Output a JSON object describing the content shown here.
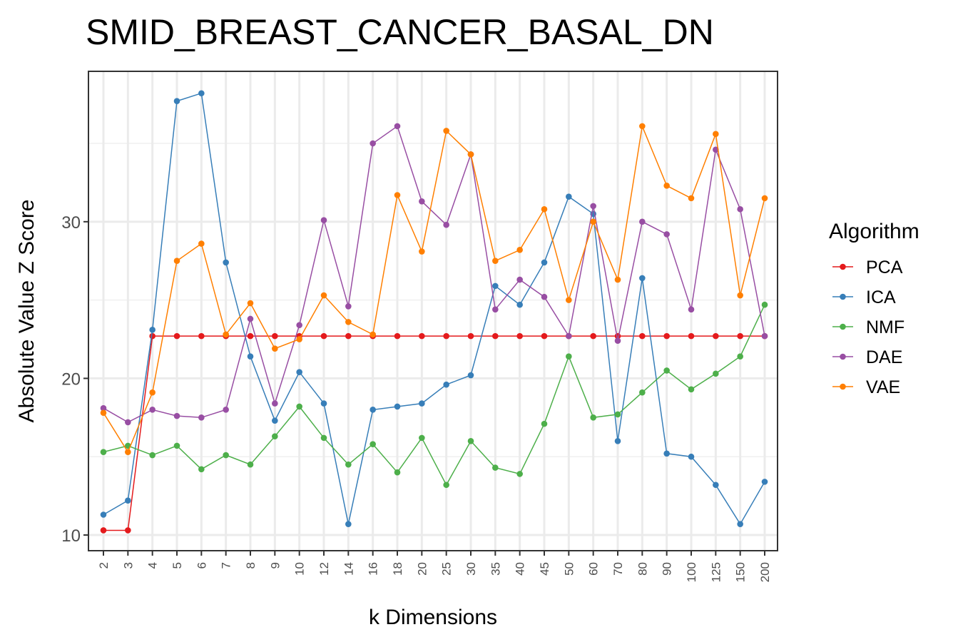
{
  "chart_data": {
    "type": "line",
    "title": "SMID_BREAST_CANCER_BASAL_DN",
    "xlabel": "k Dimensions",
    "ylabel": "Absolute Value Z Score",
    "categories": [
      "2",
      "3",
      "4",
      "5",
      "6",
      "7",
      "8",
      "9",
      "10",
      "12",
      "14",
      "16",
      "18",
      "20",
      "25",
      "30",
      "35",
      "40",
      "45",
      "50",
      "60",
      "70",
      "80",
      "90",
      "100",
      "125",
      "150",
      "200"
    ],
    "y_ticks": [
      10,
      20,
      30
    ],
    "ylim": [
      9.0,
      39.6
    ],
    "grid": true,
    "legend_title": "Algorithm",
    "legend_position": "right",
    "series": [
      {
        "name": "PCA",
        "color": "#E41A1C",
        "values": [
          10.3,
          10.3,
          22.7,
          22.7,
          22.7,
          22.7,
          22.7,
          22.7,
          22.7,
          22.7,
          22.7,
          22.7,
          22.7,
          22.7,
          22.7,
          22.7,
          22.7,
          22.7,
          22.7,
          22.7,
          22.7,
          22.7,
          22.7,
          22.7,
          22.7,
          22.7,
          22.7,
          22.7
        ]
      },
      {
        "name": "ICA",
        "color": "#377EB8",
        "values": [
          11.3,
          12.2,
          23.1,
          37.7,
          38.2,
          27.4,
          21.4,
          17.3,
          20.4,
          18.4,
          10.7,
          18.0,
          18.2,
          18.4,
          19.6,
          20.2,
          25.9,
          24.7,
          27.4,
          31.6,
          30.5,
          16.0,
          26.4,
          15.2,
          15.0,
          13.2,
          10.7,
          13.4
        ]
      },
      {
        "name": "NMF",
        "color": "#4DAF4A",
        "values": [
          15.3,
          15.7,
          15.1,
          15.7,
          14.2,
          15.1,
          14.5,
          16.3,
          18.2,
          16.2,
          14.5,
          15.8,
          14.0,
          16.2,
          13.2,
          16.0,
          14.3,
          13.9,
          17.1,
          21.4,
          17.5,
          17.7,
          19.1,
          20.5,
          19.3,
          20.3,
          21.4,
          24.7
        ]
      },
      {
        "name": "DAE",
        "color": "#984EA3",
        "values": [
          18.1,
          17.2,
          18.0,
          17.6,
          17.5,
          18.0,
          23.8,
          18.4,
          23.4,
          30.1,
          24.6,
          35.0,
          36.1,
          31.3,
          29.8,
          34.3,
          24.4,
          26.3,
          25.2,
          22.7,
          31.0,
          22.4,
          30.0,
          29.2,
          24.4,
          34.6,
          30.8,
          22.7
        ]
      },
      {
        "name": "VAE",
        "color": "#FF7F00",
        "values": [
          17.8,
          15.3,
          19.1,
          27.5,
          28.6,
          22.8,
          24.8,
          21.9,
          22.5,
          25.3,
          23.6,
          22.8,
          31.7,
          28.1,
          35.8,
          34.3,
          27.5,
          28.2,
          30.8,
          25.0,
          30.0,
          26.3,
          36.1,
          32.3,
          31.5,
          35.6,
          25.3,
          31.5
        ]
      }
    ]
  }
}
